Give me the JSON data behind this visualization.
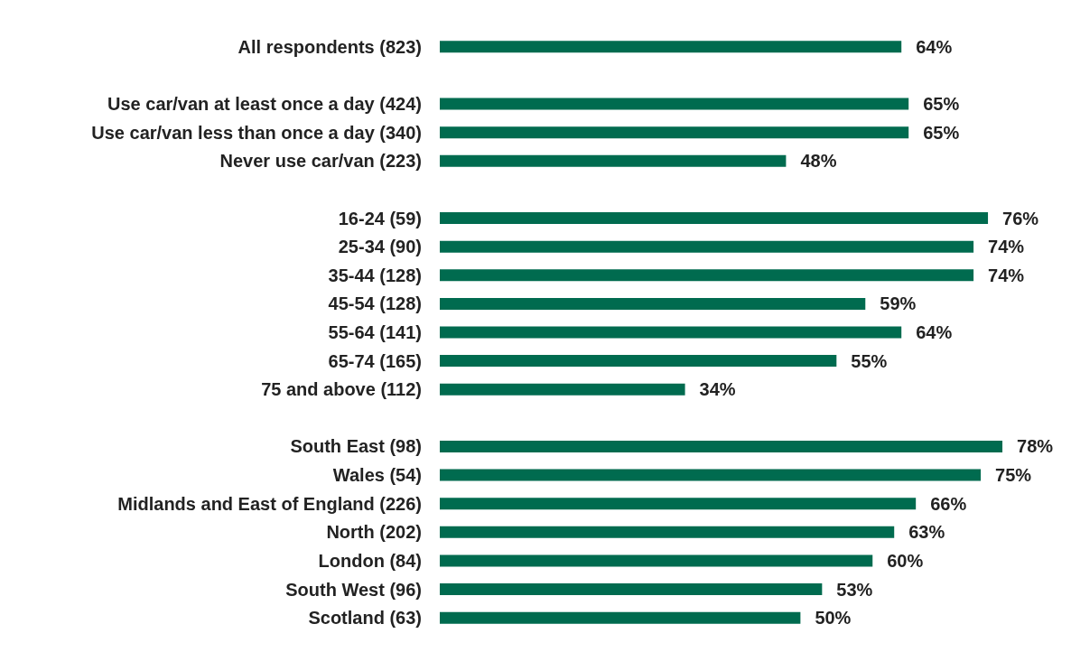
{
  "chart_data": {
    "type": "bar",
    "orientation": "horizontal",
    "color": "#006b4f",
    "categories": [
      "All respondents (823)",
      null,
      "Use car/van at least once a day (424)",
      "Use car/van less than once a day (340)",
      "Never use car/van (223)",
      null,
      "16-24 (59)",
      "25-34 (90)",
      "35-44 (128)",
      "45-54 (128)",
      "55-64 (141)",
      "65-74 (165)",
      "75 and above (112)",
      null,
      "South East (98)",
      "Wales (54)",
      "Midlands and East of England (226)",
      "North (202)",
      "London (84)",
      "South West (96)",
      "Scotland (63)"
    ],
    "values": [
      64,
      null,
      65,
      65,
      48,
      null,
      76,
      74,
      74,
      59,
      64,
      55,
      34,
      null,
      78,
      75,
      66,
      63,
      60,
      53,
      50
    ],
    "value_labels": [
      "64%",
      null,
      "65%",
      "65%",
      "48%",
      null,
      "76%",
      "74%",
      "74%",
      "59%",
      "64%",
      "55%",
      "34%",
      null,
      "78%",
      "75%",
      "66%",
      "63%",
      "60%",
      "53%",
      "50%"
    ],
    "data_labels": false
  }
}
